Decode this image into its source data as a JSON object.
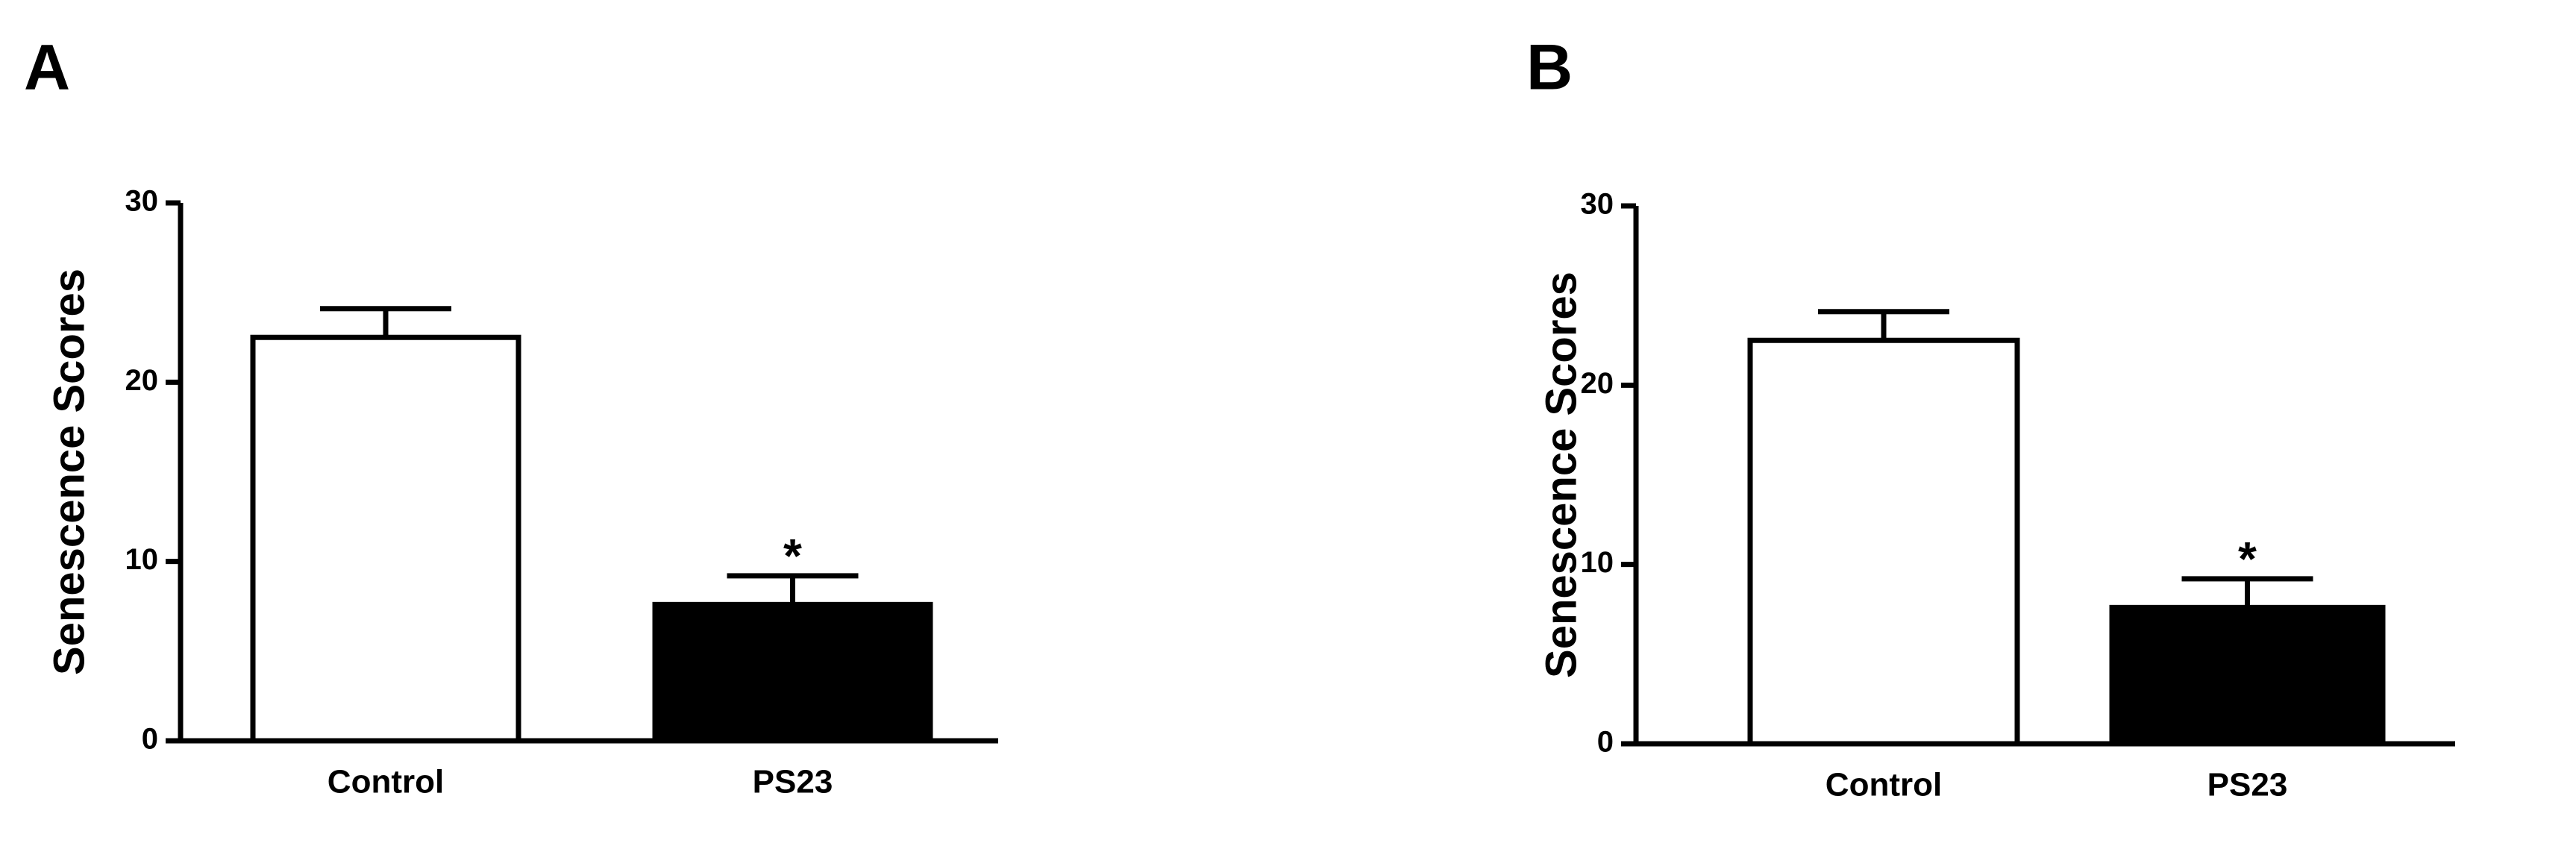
{
  "chart_data": [
    {
      "type": "bar",
      "title": "A",
      "ylabel": "Senescence Scores",
      "categories": [
        "Control",
        "PS23"
      ],
      "values": [
        22.5,
        7.6
      ],
      "errors": [
        1.6,
        1.6
      ],
      "colors": [
        "#ffffff",
        "#000000"
      ],
      "edge_color": "#000000",
      "ylim": [
        0,
        30
      ],
      "yticks": [
        0,
        10,
        20,
        30
      ],
      "annotations": [
        {
          "text": "*",
          "x": "PS23"
        }
      ]
    },
    {
      "type": "bar",
      "title": "B",
      "ylabel": "Senescence Scores",
      "categories": [
        "Control",
        "PS23"
      ],
      "values": [
        22.5,
        7.6
      ],
      "errors": [
        1.6,
        1.6
      ],
      "colors": [
        "#ffffff",
        "#000000"
      ],
      "edge_color": "#000000",
      "ylim": [
        0,
        30
      ],
      "yticks": [
        0,
        10,
        20,
        30
      ],
      "annotations": [
        {
          "text": "*",
          "x": "PS23"
        }
      ]
    }
  ]
}
